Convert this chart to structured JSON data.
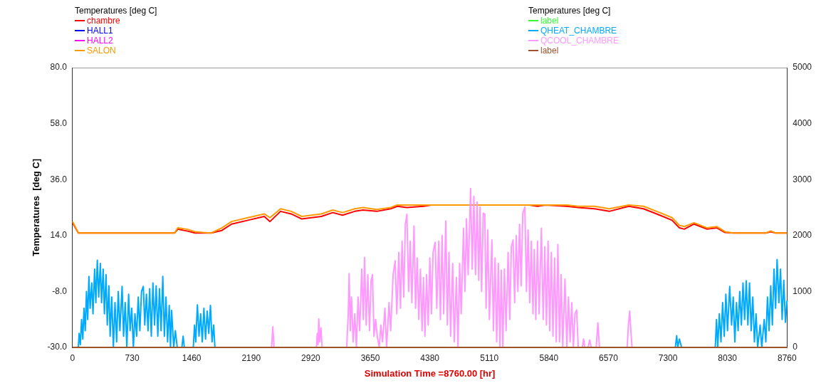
{
  "chart_data": {
    "type": "line",
    "legend_title": "Temperatures  [deg C]",
    "xlabel": "Simulation Time =8760.00 [hr]",
    "ylabel": "Temperatures  [deg C]",
    "xlim": [
      0,
      8760
    ],
    "xticks": [
      0,
      730,
      1460,
      2190,
      2920,
      3650,
      4380,
      5110,
      5840,
      6570,
      7300,
      8030,
      8760
    ],
    "ylim": [
      -30,
      80
    ],
    "yticks": [
      {
        "value": -30,
        "label": "-30.0"
      },
      {
        "value": -8,
        "label": "-8.0"
      },
      {
        "value": 14,
        "label": "14.0"
      },
      {
        "value": 36,
        "label": "36.0"
      },
      {
        "value": 58,
        "label": "58.0"
      },
      {
        "value": 80,
        "label": "80.0"
      }
    ],
    "y2lim": [
      0,
      5000
    ],
    "y2ticks": [
      0,
      1000,
      2000,
      3000,
      4000,
      5000
    ],
    "grid": false,
    "legend": "top",
    "marker": "none",
    "line_style": "solid",
    "series": [
      {
        "name": "chambre",
        "color": "#ff0000",
        "x": [
          0,
          70,
          1250,
          1290,
          1400,
          1500,
          1700,
          1830,
          1950,
          2150,
          2350,
          2420,
          2550,
          2680,
          2810,
          3050,
          3190,
          3310,
          3460,
          3560,
          3730,
          3900,
          3980,
          4100,
          4300,
          4400,
          5600,
          5700,
          5800,
          6060,
          6200,
          6400,
          6580,
          6820,
          7000,
          7200,
          7350,
          7440,
          7500,
          7620,
          7780,
          7900,
          8000,
          8100,
          8500,
          8560,
          8620,
          8760
        ],
        "values": [
          19,
          15,
          15,
          16.5,
          15.8,
          15,
          15,
          16,
          18.5,
          20,
          21.5,
          19.5,
          23.5,
          22.5,
          20.5,
          21.5,
          23,
          22,
          23.5,
          24,
          23.5,
          24.5,
          25.5,
          25,
          25.5,
          26,
          26,
          25.5,
          26,
          25.5,
          25,
          24.5,
          23.5,
          25.5,
          24.5,
          22,
          20,
          17,
          16.5,
          18.5,
          16.5,
          17,
          15.2,
          15,
          15,
          15.5,
          15,
          15
        ]
      },
      {
        "name": "HALL1",
        "color": "#0000ff"
      },
      {
        "name": "HALL2",
        "color": "#ff00ff"
      },
      {
        "name": "SALON",
        "color": "#ff9900",
        "x": [
          0,
          70,
          1250,
          1290,
          1400,
          1500,
          1600,
          1700,
          1830,
          1950,
          2150,
          2350,
          2420,
          2550,
          2680,
          2810,
          3050,
          3190,
          3310,
          3460,
          3560,
          3730,
          3900,
          3980,
          6060,
          6200,
          6400,
          6580,
          6820,
          7000,
          7200,
          7350,
          7440,
          7500,
          7620,
          7780,
          7900,
          8000,
          8100,
          8500,
          8560,
          8620,
          8760
        ],
        "values": [
          19.5,
          15,
          15,
          17,
          16.5,
          15.5,
          15.2,
          15,
          17,
          19.5,
          21,
          22.5,
          21,
          24.5,
          23.5,
          21.5,
          22.5,
          24,
          23,
          24.5,
          25,
          24.2,
          25,
          26,
          26,
          25.5,
          25.5,
          24.5,
          26,
          25.5,
          23,
          21,
          18,
          17.5,
          19,
          17,
          17.5,
          15.5,
          15,
          15,
          15.8,
          15,
          15
        ]
      },
      {
        "name": "label",
        "color": "#33ff33",
        "axis": "y2"
      },
      {
        "name": "QHEAT_CHAMBRE",
        "color": "#00aaff",
        "axis": "y2",
        "x": [
          0,
          70,
          80,
          95,
          110,
          125,
          140,
          155,
          170,
          185,
          200,
          215,
          235,
          250,
          270,
          285,
          303,
          320,
          340,
          355,
          375,
          390,
          410,
          425,
          445,
          460,
          480,
          500,
          520,
          540,
          560,
          580,
          607,
          625,
          645,
          665,
          687,
          705,
          725,
          745,
          765,
          785,
          805,
          825,
          845,
          867,
          885,
          905,
          925,
          945,
          965,
          985,
          1005,
          1025,
          1045,
          1065,
          1085,
          1106,
          1125,
          1145,
          1165,
          1185,
          1200,
          1214,
          1240,
          1260,
          1283,
          1340,
          1355,
          1370,
          1480,
          1495,
          1510,
          1530,
          1550,
          1570,
          1590,
          1610,
          1630,
          1650,
          1670,
          1690,
          1710,
          1730,
          1745,
          7390,
          7407,
          7420,
          7440,
          7467,
          7880,
          7895,
          7910,
          7930,
          7950,
          7970,
          7990,
          8010,
          8030,
          8057,
          8080,
          8100,
          8120,
          8140,
          8160,
          8180,
          8200,
          8220,
          8240,
          8260,
          8280,
          8300,
          8320,
          8340,
          8360,
          8380,
          8400,
          8430,
          8450,
          8480,
          8500,
          8520,
          8540,
          8560,
          8580,
          8600,
          8620,
          8638,
          8660,
          8680,
          8700,
          8720,
          8740,
          8760
        ],
        "values": [
          0,
          0,
          250,
          50,
          500,
          150,
          700,
          300,
          1000,
          500,
          1270,
          700,
          1150,
          600,
          1400,
          800,
          1560,
          900,
          1500,
          800,
          1400,
          600,
          1300,
          400,
          1100,
          200,
          900,
          0,
          800,
          100,
          1000,
          300,
          1090,
          200,
          800,
          0,
          950,
          300,
          700,
          0,
          600,
          200,
          900,
          300,
          1000,
          1090,
          400,
          950,
          300,
          1050,
          200,
          1150,
          400,
          1100,
          200,
          1050,
          300,
          1270,
          200,
          900,
          100,
          750,
          0,
          660,
          0,
          300,
          0,
          0,
          200,
          0,
          0,
          400,
          100,
          760,
          200,
          600,
          100,
          700,
          150,
          650,
          250,
          750,
          100,
          400,
          0,
          0,
          210,
          0,
          150,
          0,
          0,
          500,
          0,
          600,
          100,
          800,
          200,
          950,
          300,
          1090,
          400,
          900,
          100,
          800,
          300,
          1000,
          400,
          1150,
          500,
          1190,
          400,
          1150,
          300,
          900,
          100,
          600,
          0,
          400,
          0,
          500,
          100,
          900,
          300,
          1100,
          400,
          1400,
          700,
          1570,
          800,
          1400,
          500,
          1200,
          450,
          840
        ]
      },
      {
        "name": "QCOOL_CHAMBRE",
        "color": "#ff99ff",
        "axis": "y2",
        "x": [
          0,
          2440,
          2455,
          2470,
          2990,
          3000,
          3010,
          3018,
          3030,
          3045,
          3060,
          3360,
          3380,
          3391,
          3405,
          3420,
          3440,
          3460,
          3480,
          3500,
          3520,
          3545,
          3565,
          3580,
          3600,
          3620,
          3640,
          3660,
          3677,
          3695,
          3715,
          3738,
          3760,
          3780,
          3800,
          3830,
          3850,
          3880,
          3900,
          3930,
          3955,
          3975,
          4000,
          4020,
          4040,
          4060,
          4080,
          4099,
          4120,
          4140,
          4160,
          4186,
          4205,
          4225,
          4245,
          4265,
          4285,
          4302,
          4320,
          4340,
          4360,
          4380,
          4400,
          4420,
          4446,
          4465,
          4490,
          4510,
          4530,
          4550,
          4576,
          4595,
          4615,
          4635,
          4660,
          4680,
          4706,
          4725,
          4745,
          4765,
          4793,
          4810,
          4830,
          4850,
          4880,
          4900,
          4920,
          4940,
          4960,
          4980,
          4996,
          5015,
          5035,
          5054,
          5070,
          5090,
          5110,
          5141,
          5160,
          5180,
          5200,
          5220,
          5240,
          5256,
          5275,
          5295,
          5315,
          5340,
          5360,
          5380,
          5401,
          5420,
          5440,
          5460,
          5480,
          5500,
          5520,
          5545,
          5565,
          5585,
          5605,
          5625,
          5645,
          5661,
          5680,
          5700,
          5720,
          5748,
          5770,
          5790,
          5810,
          5830,
          5850,
          5870,
          5890,
          5910,
          5930,
          5950,
          5970,
          5990,
          6010,
          6037,
          6060,
          6080,
          6100,
          6120,
          6140,
          6160,
          6180,
          6200,
          6250,
          6265,
          6280,
          6320,
          6340,
          6360,
          6420,
          6441,
          6460,
          6800,
          6815,
          6831,
          6845,
          6860,
          8760
        ],
        "values": [
          0,
          0,
          370,
          0,
          0,
          250,
          50,
          510,
          100,
          350,
          0,
          0,
          600,
          1320,
          300,
          900,
          100,
          600,
          0,
          900,
          300,
          1400,
          500,
          1610,
          400,
          1300,
          300,
          1200,
          1300,
          200,
          500,
          170,
          0,
          400,
          100,
          700,
          0,
          800,
          300,
          1300,
          1550,
          600,
          1700,
          700,
          1900,
          900,
          2200,
          2380,
          1000,
          1900,
          800,
          2170,
          700,
          1600,
          500,
          1400,
          300,
          1250,
          200,
          1300,
          400,
          1600,
          600,
          1700,
          1880,
          700,
          1900,
          500,
          2000,
          600,
          2260,
          400,
          1700,
          200,
          1500,
          100,
          1250,
          0,
          1500,
          600,
          2130,
          1000,
          2300,
          1300,
          2840,
          1400,
          2700,
          1300,
          2600,
          1200,
          2510,
          1000,
          2400,
          2380,
          700,
          2100,
          500,
          1920,
          300,
          1600,
          100,
          1500,
          0,
          1380,
          0,
          1400,
          300,
          1700,
          500,
          1800,
          1920,
          800,
          2000,
          1000,
          2200,
          1100,
          2400,
          2510,
          1000,
          2100,
          800,
          1900,
          600,
          1750,
          500,
          1900,
          600,
          2130,
          500,
          1800,
          400,
          1900,
          300,
          1700,
          200,
          1600,
          100,
          1840,
          100,
          1300,
          0,
          1220,
          0,
          900,
          100,
          800,
          0,
          600,
          670,
          0,
          0,
          150,
          0,
          0,
          130,
          0,
          0,
          440,
          0,
          0,
          400,
          650,
          300,
          0,
          0
        ]
      },
      {
        "name": "label",
        "color": "#a0522d",
        "axis": "y2",
        "x": [
          0,
          8760
        ],
        "values": [
          0,
          0
        ]
      }
    ]
  }
}
